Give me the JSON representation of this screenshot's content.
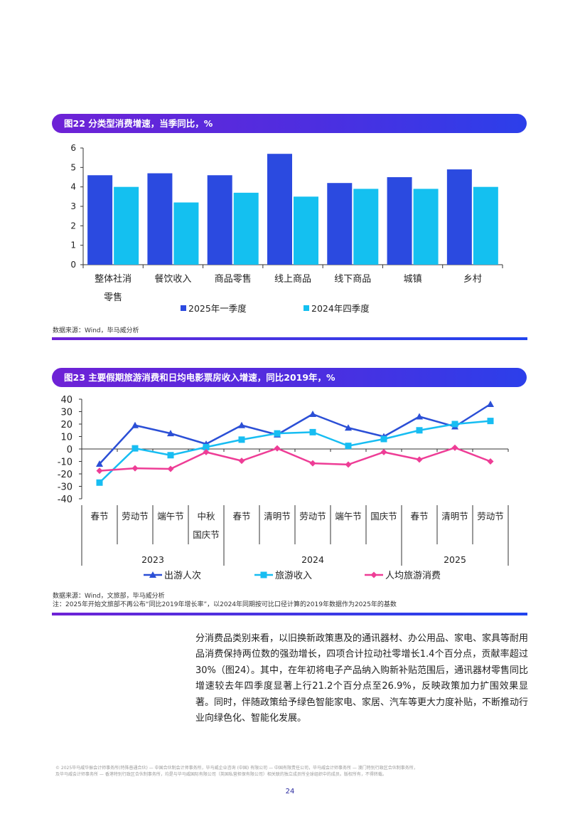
{
  "figure22": {
    "title": "图22 分类型消费增速，当季同比，%",
    "source": "数据来源：Wind，毕马威分析",
    "chart_data": {
      "type": "bar",
      "title": "图22 分类型消费增速，当季同比，%",
      "categories": [
        "整体社消零售",
        "餐饮收入",
        "商品零售",
        "线上商品",
        "线下商品",
        "城镇",
        "乡村"
      ],
      "category_lines": [
        [
          "整体社消",
          "零售"
        ],
        [
          "餐饮收入"
        ],
        [
          "商品零售"
        ],
        [
          "线上商品"
        ],
        [
          "线下商品"
        ],
        [
          "城镇"
        ],
        [
          "乡村"
        ]
      ],
      "series": [
        {
          "name": "2025年一季度",
          "color": "#2b4ae0",
          "values": [
            4.6,
            4.7,
            4.6,
            5.7,
            4.2,
            4.5,
            4.9
          ]
        },
        {
          "name": "2024年四季度",
          "color": "#14c0f0",
          "values": [
            4.0,
            3.2,
            3.7,
            3.5,
            3.9,
            3.9,
            4.0
          ]
        }
      ],
      "ylim": [
        0,
        6
      ],
      "yticks": [
        "0",
        "1",
        "2",
        "3",
        "4",
        "5",
        "6"
      ],
      "xlabel": "",
      "ylabel": "",
      "legend": "bottom"
    }
  },
  "figure23": {
    "title": "图23 主要假期旅游消费和日均电影票房收入增速，同比2019年，%",
    "source_line1": "数据来源：Wind，文旅部，毕马威分析",
    "source_line2": "注：2025年开始文旅部不再公布“同比2019年增长率”，以2024年同期按可比口径计算的2019年数据作为2025年的基数",
    "chart_data": {
      "type": "line",
      "title": "图23 主要假期旅游消费和日均电影票房收入增速，同比2019年，%",
      "categories": [
        "春节",
        "劳动节",
        "端午节",
        "中秋国庆节",
        "春节",
        "清明节",
        "劳动节",
        "端午节",
        "国庆节",
        "春节",
        "清明节",
        "劳动节"
      ],
      "category_lines": [
        [
          "春节"
        ],
        [
          "劳动节"
        ],
        [
          "端午节"
        ],
        [
          "中秋",
          "国庆节"
        ],
        [
          "春节"
        ],
        [
          "清明节"
        ],
        [
          "劳动节"
        ],
        [
          "端午节"
        ],
        [
          "国庆节"
        ],
        [
          "春节"
        ],
        [
          "清明节"
        ],
        [
          "劳动节"
        ]
      ],
      "groups": [
        {
          "label": "2023",
          "count": 4
        },
        {
          "label": "2024",
          "count": 5
        },
        {
          "label": "2025",
          "count": 3
        }
      ],
      "series": [
        {
          "name": "出游人次",
          "color": "#2b4fd6",
          "marker": "triangle",
          "values": [
            -12,
            19,
            12.5,
            4,
            19,
            11.5,
            28,
            17,
            10,
            26,
            18,
            36
          ]
        },
        {
          "name": "旅游收入",
          "color": "#17bdf2",
          "marker": "square",
          "values": [
            -27,
            0.5,
            -5,
            1.5,
            7.5,
            12.5,
            13.5,
            2.5,
            8,
            15,
            20,
            22.5
          ]
        },
        {
          "name": "人均旅游消费",
          "color": "#ee3d96",
          "marker": "diamond",
          "values": [
            -17.5,
            -15.5,
            -16,
            -2.5,
            -9.5,
            0.5,
            -11.5,
            -12.5,
            -2.5,
            -8.5,
            1,
            -10
          ]
        }
      ],
      "ylim": [
        -40,
        40
      ],
      "yticks": [
        "40",
        "30",
        "20",
        "10",
        "0",
        "-10",
        "-20",
        "-30",
        "-40"
      ],
      "legend": "bottom"
    }
  },
  "body_text": "分消费品类别来看，以旧换新政策惠及的通讯器材、办公用品、家电、家具等耐用品消费保持两位数的强劲增长，四项合计拉动社零增长1.4个百分点，贡献率超过30%（图24）。其中，在年初将电子产品纳入购新补贴范围后，通讯器材零售同比增速较去年四季度显著上行21.2个百分点至26.9%，反映政策加力扩围效果显著。同时，伴随政策给予绿色智能家电、家居、汽车等更大力度补贴，不断推动行业向绿色化、智能化发展。",
  "footer": {
    "line1": "© 2025毕马威华振会计师事务所(特殊普通合伙) — 中国合伙制会计师事务所，毕马威企业咨询 (中国) 有限公司 — 中国有限责任公司，毕马威会计师事务所 — 澳门特别行政区合伙制事务所，",
    "line2": "及毕马威会计师事务所 — 香港特别行政区合伙制事务所，均是与毕马威国际有限公司（英国私营担保有限公司）相关联的独立成员所全球组织中的成员。版权所有，不得转载。"
  },
  "page_number": "24"
}
